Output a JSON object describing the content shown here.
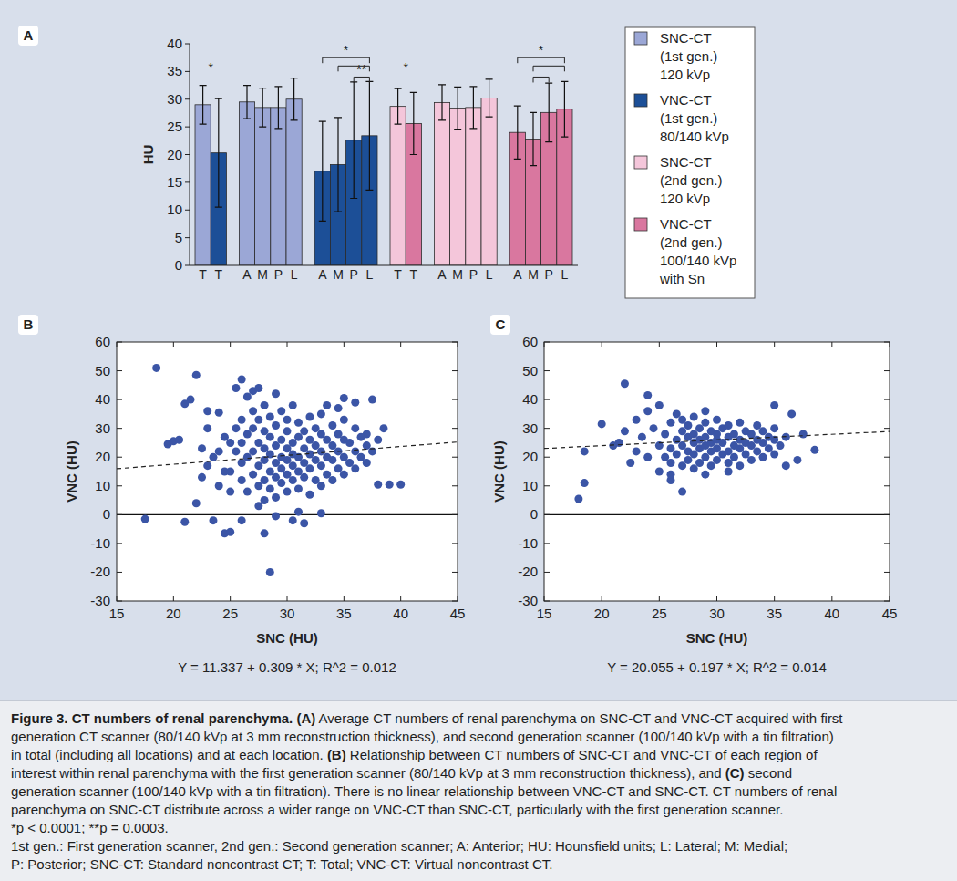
{
  "chart_data": [
    {
      "type": "bar",
      "panel": "A",
      "ylabel": "HU",
      "categories": [
        "T",
        "T",
        "A",
        "M",
        "P",
        "L",
        "A",
        "M",
        "P",
        "L",
        "T",
        "T",
        "A",
        "M",
        "P",
        "L",
        "A",
        "M",
        "P",
        "L"
      ],
      "ylim": [
        0,
        40
      ],
      "yticks": [
        0,
        5,
        10,
        15,
        20,
        25,
        30,
        35,
        40
      ],
      "legend": "right",
      "series": [
        {
          "name": "SNC-CT\n(1st gen.)\n120 kVp",
          "color": "#9ba7d6",
          "values": [
            29,
            null,
            29.5,
            28.5,
            28.5,
            30,
            null,
            null,
            null,
            null,
            null,
            null,
            null,
            null,
            null,
            null,
            null,
            null,
            null,
            null
          ],
          "errors": [
            3.5,
            null,
            3,
            3.5,
            3.8,
            3.8,
            null,
            null,
            null,
            null,
            null,
            null,
            null,
            null,
            null,
            null,
            null,
            null,
            null,
            null
          ]
        },
        {
          "name": "VNC-CT\n(1st gen.)\n80/140 kVp",
          "color": "#1c4f97",
          "values": [
            null,
            20.3,
            null,
            null,
            null,
            null,
            17,
            18.2,
            22.6,
            23.4,
            null,
            null,
            null,
            null,
            null,
            null,
            null,
            null,
            null,
            null
          ],
          "errors": [
            null,
            9.8,
            null,
            null,
            null,
            null,
            9,
            8.5,
            10.5,
            9.8,
            null,
            null,
            null,
            null,
            null,
            null,
            null,
            null,
            null,
            null
          ]
        },
        {
          "name": "SNC-CT\n(2nd gen.)\n120 kVp",
          "color": "#f4c6da",
          "values": [
            null,
            null,
            null,
            null,
            null,
            null,
            null,
            null,
            null,
            null,
            28.7,
            null,
            29.4,
            28.4,
            28.5,
            30.2,
            null,
            null,
            null,
            null
          ],
          "errors": [
            null,
            null,
            null,
            null,
            null,
            null,
            null,
            null,
            null,
            null,
            3.2,
            null,
            3.2,
            3.8,
            3.8,
            3.4,
            null,
            null,
            null,
            null
          ]
        },
        {
          "name": "VNC-CT\n(2nd gen.)\n100/140 kVp\nwith Sn",
          "color": "#d9779f",
          "values": [
            null,
            null,
            null,
            null,
            null,
            null,
            null,
            null,
            null,
            null,
            null,
            25.6,
            null,
            null,
            null,
            null,
            24,
            22.8,
            27.6,
            28.2
          ],
          "errors": [
            null,
            null,
            null,
            null,
            null,
            null,
            null,
            null,
            null,
            null,
            null,
            5.6,
            null,
            null,
            null,
            null,
            4.8,
            4.8,
            5.3,
            5
          ]
        }
      ],
      "annotations": [
        {
          "text": "*",
          "x": 0.5,
          "y": 35.5
        },
        {
          "text": "*",
          "x": 10.5,
          "y": 35.5
        }
      ],
      "brackets": [
        {
          "from": 6,
          "to": 9,
          "y": 37.5,
          "text": "*"
        },
        {
          "from": 7,
          "to": 9,
          "y": 36
        },
        {
          "from": 8,
          "to": 9,
          "y": 34,
          "text": "**"
        },
        {
          "from": 16,
          "to": 19,
          "y": 37.5,
          "text": "*"
        },
        {
          "from": 17,
          "to": 19,
          "y": 36
        },
        {
          "from": 17,
          "to": 18,
          "y": 34
        }
      ]
    },
    {
      "type": "scatter",
      "panel": "B",
      "xlabel": "SNC (HU)",
      "ylabel": "VNC (HU)",
      "xlim": [
        15,
        45
      ],
      "xticks": [
        15,
        20,
        25,
        30,
        35,
        40,
        45
      ],
      "ylim": [
        -30,
        60
      ],
      "yticks": [
        -30,
        -20,
        -10,
        0,
        10,
        20,
        30,
        40,
        50,
        60
      ],
      "color": "#3b55a6",
      "marker": "circle",
      "hline": 0,
      "fit": {
        "intercept": 11.337,
        "slope": 0.309,
        "label": "Y = 11.337 + 0.309 * X; R^2 = 0.012"
      },
      "x": [
        18.5,
        17.5,
        19.5,
        20,
        20.5,
        21,
        21.5,
        21,
        22,
        22,
        22.5,
        23,
        23,
        22.5,
        23.5,
        23.5,
        24,
        24,
        24.5,
        24.5,
        25,
        25,
        25.5,
        26,
        26,
        26.5,
        27,
        27.5,
        28,
        28.5,
        27.5,
        29,
        30.5,
        31,
        31.5,
        33,
        38,
        39,
        40,
        38.5,
        37,
        37.5,
        36,
        35,
        34.5,
        33.5,
        25,
        25.5,
        25.5,
        26,
        26,
        26,
        26,
        26.5,
        26.5,
        26.5,
        27,
        27,
        27,
        27,
        27.5,
        27.5,
        27.5,
        27.5,
        28,
        28,
        28,
        28,
        28,
        28,
        28.5,
        28.5,
        28.5,
        28.5,
        28.5,
        29,
        29,
        29,
        29,
        29,
        29,
        29.5,
        29.5,
        29.5,
        29.5,
        29.5,
        30,
        30,
        30,
        30,
        30,
        30,
        30.5,
        30.5,
        30.5,
        30.5,
        30.5,
        31,
        31,
        31,
        31,
        31,
        31.5,
        31.5,
        31.5,
        31.5,
        32,
        32,
        32,
        32,
        32,
        32.5,
        32.5,
        32.5,
        32.5,
        33,
        33,
        33,
        33,
        33,
        33.5,
        33.5,
        33.5,
        34,
        34,
        34,
        34,
        34.5,
        34.5,
        34.5,
        35,
        35,
        35,
        35,
        35.5,
        35.5,
        36,
        36,
        36,
        36.5,
        36.5,
        37,
        37,
        37.5,
        38,
        23,
        24,
        24.5,
        25
      ],
      "values": [
        51,
        -1.5,
        24.5,
        25.5,
        26,
        -2.5,
        40,
        38.5,
        48.5,
        4,
        23,
        36,
        30,
        13,
        -2,
        20,
        10,
        35.5,
        -6.5,
        27,
        -6,
        8,
        44,
        47,
        -2,
        41,
        43,
        44,
        -6.5,
        -20,
        3,
        -0.5,
        -2,
        1,
        -3,
        0.5,
        10.5,
        10.5,
        10.5,
        30,
        28,
        40,
        39,
        40.5,
        37,
        38,
        15,
        22,
        30,
        12,
        18,
        25,
        33,
        8,
        20,
        28,
        14,
        22,
        30,
        36,
        10,
        17,
        25,
        33,
        5,
        12,
        19,
        23,
        29,
        38,
        9,
        15,
        21,
        27,
        34,
        6,
        13,
        18,
        24,
        31,
        42,
        11,
        16,
        20,
        26,
        36,
        8,
        14,
        19,
        23,
        29,
        33,
        12,
        17,
        21,
        25,
        38,
        9,
        15,
        20,
        27,
        32,
        13,
        18,
        23,
        29,
        7,
        16,
        21,
        26,
        34,
        12,
        19,
        24,
        30,
        10,
        17,
        22,
        28,
        35,
        14,
        20,
        26,
        12,
        19,
        24,
        31,
        16,
        22,
        28,
        14,
        20,
        26,
        33,
        18,
        25,
        16,
        22,
        30,
        20,
        27,
        18,
        24,
        22,
        26,
        17,
        22,
        15,
        25
      ]
    },
    {
      "type": "scatter",
      "panel": "C",
      "xlabel": "SNC (HU)",
      "ylabel": "VNC (HU)",
      "xlim": [
        15,
        45
      ],
      "xticks": [
        15,
        20,
        25,
        30,
        35,
        40,
        45
      ],
      "ylim": [
        -30,
        60
      ],
      "yticks": [
        -30,
        -20,
        -10,
        0,
        10,
        20,
        30,
        40,
        50,
        60
      ],
      "color": "#3b55a6",
      "marker": "circle",
      "hline": 0,
      "fit": {
        "intercept": 20.055,
        "slope": 0.197,
        "label": "Y = 20.055 + 0.197 * X; R^2 = 0.014"
      },
      "x": [
        18,
        18.5,
        18.5,
        20,
        22,
        24,
        21.5,
        21,
        22,
        22.5,
        23,
        23,
        23.5,
        24,
        24,
        24.5,
        25,
        25,
        26,
        27,
        36.5,
        38.5,
        37,
        37.5,
        36,
        35,
        25,
        25.5,
        25.5,
        26,
        26,
        26,
        26.5,
        26.5,
        26.5,
        27,
        27,
        27,
        27,
        27.5,
        27.5,
        27.5,
        27.5,
        28,
        28,
        28,
        28,
        28,
        28.5,
        28.5,
        28.5,
        28.5,
        29,
        29,
        29,
        29,
        29,
        29.5,
        29.5,
        29.5,
        29.5,
        30,
        30,
        30,
        30,
        30,
        30.5,
        30.5,
        30.5,
        31,
        31,
        31,
        31,
        31.5,
        31.5,
        31.5,
        32,
        32,
        32,
        32,
        32.5,
        32.5,
        32.5,
        33,
        33,
        33,
        33.5,
        33.5,
        33.5,
        34,
        34,
        34,
        34.5,
        34.5,
        35,
        35,
        35,
        35.5,
        36,
        26,
        31,
        29
      ],
      "values": [
        5.5,
        11,
        22,
        31.5,
        45.5,
        41.5,
        25,
        24,
        29,
        18,
        22,
        33,
        27,
        20,
        36,
        30,
        15,
        38,
        12,
        8,
        35,
        22.5,
        19,
        28,
        17,
        38,
        24,
        20,
        28,
        18,
        23,
        32,
        21,
        26,
        35,
        17,
        24,
        29,
        33,
        19,
        22,
        27,
        31,
        16,
        21,
        25,
        28,
        34,
        18,
        23,
        26,
        30,
        20,
        24,
        27,
        32,
        36,
        17,
        22,
        25,
        29,
        19,
        23,
        26,
        28,
        33,
        21,
        25,
        30,
        18,
        22,
        27,
        31,
        20,
        24,
        28,
        17,
        23,
        26,
        32,
        21,
        25,
        29,
        19,
        24,
        28,
        22,
        26,
        31,
        20,
        25,
        29,
        23,
        27,
        21,
        26,
        30,
        24,
        27,
        14,
        15,
        14
      ]
    }
  ],
  "caption": {
    "lines": [
      [
        {
          "text": "Figure 3. CT numbers of renal parenchyma. (A)",
          "bold": true
        },
        {
          "text": " Average CT numbers of renal parenchyma on SNC-CT and VNC-CT acquired with first"
        }
      ],
      [
        {
          "text": "generation CT scanner (80/140 kVp at 3 mm reconstruction thickness), and second generation scanner (100/140 kVp with a tin filtration)"
        }
      ],
      [
        {
          "text": "in total (including all locations) and at each location. "
        },
        {
          "text": "(B)",
          "bold": true
        },
        {
          "text": " Relationship between CT numbers of SNC-CT and VNC-CT of each region of"
        }
      ],
      [
        {
          "text": "interest within renal parenchyma with the first generation scanner (80/140 kVp at 3 mm reconstruction thickness), and "
        },
        {
          "text": "(C)",
          "bold": true
        },
        {
          "text": " second"
        }
      ],
      [
        {
          "text": "generation scanner (100/140 kVp with a tin filtration). There is no linear relationship between VNC-CT and SNC-CT. CT numbers of renal"
        }
      ],
      [
        {
          "text": "parenchyma on SNC-CT distribute across a wider range on VNC-CT than SNC-CT, particularly with the first generation scanner."
        }
      ],
      [
        {
          "text": "*p < 0.0001; **p = 0.0003."
        }
      ],
      [
        {
          "text": "1st gen.: First generation scanner, 2nd gen.: Second generation scanner; A: Anterior; HU: Hounsfield units; L: Lateral; M: Medial;"
        }
      ],
      [
        {
          "text": "P: Posterior; SNC-CT: Standard noncontrast CT; T: Total; VNC-CT: Virtual noncontrast CT."
        }
      ]
    ]
  }
}
